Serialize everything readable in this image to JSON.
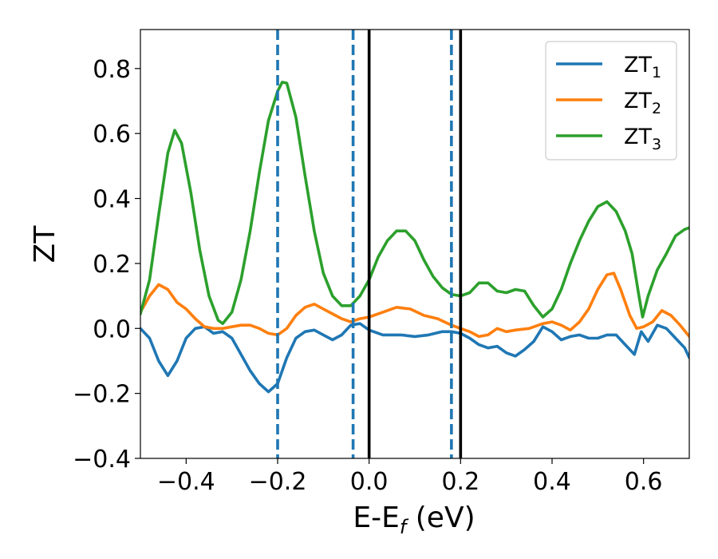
{
  "chart_data": {
    "type": "line",
    "xlabel": "E-E",
    "xlabel_sub": "f",
    "xlabel_unit": " (eV)",
    "ylabel": "ZT",
    "xlim": [
      -0.5,
      0.7
    ],
    "ylim": [
      -0.4,
      0.92
    ],
    "xticks": [
      -0.4,
      -0.2,
      0.0,
      0.2,
      0.4,
      0.6
    ],
    "xtick_labels": [
      "−0.4",
      "−0.2",
      "0.0",
      "0.2",
      "0.4",
      "0.6"
    ],
    "yticks": [
      -0.4,
      -0.2,
      0.0,
      0.2,
      0.4,
      0.6,
      0.8
    ],
    "ytick_labels": [
      "−0.4",
      "−0.2",
      "0.0",
      "0.2",
      "0.4",
      "0.6",
      "0.8"
    ],
    "grid": false,
    "legend_position": "top-right",
    "series": [
      {
        "name": "ZT",
        "name_sub": "1",
        "color": "#1f77b4",
        "points": [
          [
            -0.5,
            0.0
          ],
          [
            -0.48,
            -0.03
          ],
          [
            -0.46,
            -0.1
          ],
          [
            -0.44,
            -0.145
          ],
          [
            -0.42,
            -0.1
          ],
          [
            -0.4,
            -0.03
          ],
          [
            -0.38,
            0.0
          ],
          [
            -0.36,
            0.005
          ],
          [
            -0.34,
            -0.015
          ],
          [
            -0.32,
            -0.01
          ],
          [
            -0.3,
            -0.03
          ],
          [
            -0.28,
            -0.08
          ],
          [
            -0.26,
            -0.13
          ],
          [
            -0.24,
            -0.17
          ],
          [
            -0.22,
            -0.195
          ],
          [
            -0.2,
            -0.17
          ],
          [
            -0.18,
            -0.09
          ],
          [
            -0.16,
            -0.03
          ],
          [
            -0.14,
            -0.01
          ],
          [
            -0.12,
            -0.005
          ],
          [
            -0.1,
            -0.02
          ],
          [
            -0.08,
            -0.035
          ],
          [
            -0.06,
            -0.02
          ],
          [
            -0.04,
            0.01
          ],
          [
            -0.02,
            0.015
          ],
          [
            0.0,
            -0.005
          ],
          [
            0.03,
            -0.02
          ],
          [
            0.07,
            -0.02
          ],
          [
            0.1,
            -0.025
          ],
          [
            0.13,
            -0.02
          ],
          [
            0.16,
            -0.01
          ],
          [
            0.18,
            -0.01
          ],
          [
            0.2,
            -0.015
          ],
          [
            0.22,
            -0.03
          ],
          [
            0.24,
            -0.05
          ],
          [
            0.26,
            -0.06
          ],
          [
            0.28,
            -0.055
          ],
          [
            0.3,
            -0.075
          ],
          [
            0.32,
            -0.085
          ],
          [
            0.34,
            -0.065
          ],
          [
            0.36,
            -0.04
          ],
          [
            0.38,
            0.005
          ],
          [
            0.4,
            -0.01
          ],
          [
            0.42,
            -0.035
          ],
          [
            0.44,
            -0.025
          ],
          [
            0.46,
            -0.02
          ],
          [
            0.48,
            -0.03
          ],
          [
            0.5,
            -0.03
          ],
          [
            0.52,
            -0.02
          ],
          [
            0.54,
            -0.02
          ],
          [
            0.56,
            -0.05
          ],
          [
            0.58,
            -0.08
          ],
          [
            0.595,
            -0.01
          ],
          [
            0.61,
            -0.04
          ],
          [
            0.63,
            0.01
          ],
          [
            0.65,
            0.0
          ],
          [
            0.67,
            -0.03
          ],
          [
            0.69,
            -0.06
          ],
          [
            0.7,
            -0.09
          ]
        ]
      },
      {
        "name": "ZT",
        "name_sub": "2",
        "color": "#ff7f0e",
        "points": [
          [
            -0.5,
            0.05
          ],
          [
            -0.48,
            0.1
          ],
          [
            -0.46,
            0.135
          ],
          [
            -0.44,
            0.12
          ],
          [
            -0.42,
            0.08
          ],
          [
            -0.4,
            0.06
          ],
          [
            -0.38,
            0.03
          ],
          [
            -0.36,
            0.005
          ],
          [
            -0.34,
            0.0
          ],
          [
            -0.32,
            0.0
          ],
          [
            -0.3,
            0.005
          ],
          [
            -0.28,
            0.01
          ],
          [
            -0.26,
            0.01
          ],
          [
            -0.24,
            0.0
          ],
          [
            -0.22,
            -0.015
          ],
          [
            -0.2,
            -0.02
          ],
          [
            -0.18,
            0.0
          ],
          [
            -0.16,
            0.04
          ],
          [
            -0.14,
            0.065
          ],
          [
            -0.12,
            0.075
          ],
          [
            -0.1,
            0.06
          ],
          [
            -0.08,
            0.045
          ],
          [
            -0.06,
            0.03
          ],
          [
            -0.04,
            0.02
          ],
          [
            -0.02,
            0.03
          ],
          [
            0.0,
            0.035
          ],
          [
            0.03,
            0.05
          ],
          [
            0.06,
            0.065
          ],
          [
            0.09,
            0.06
          ],
          [
            0.12,
            0.04
          ],
          [
            0.15,
            0.03
          ],
          [
            0.18,
            0.01
          ],
          [
            0.2,
            0.0
          ],
          [
            0.22,
            -0.01
          ],
          [
            0.24,
            -0.025
          ],
          [
            0.26,
            -0.02
          ],
          [
            0.28,
            0.0
          ],
          [
            0.3,
            -0.01
          ],
          [
            0.32,
            -0.005
          ],
          [
            0.35,
            0.0
          ],
          [
            0.38,
            0.015
          ],
          [
            0.4,
            0.02
          ],
          [
            0.42,
            0.01
          ],
          [
            0.44,
            -0.005
          ],
          [
            0.46,
            0.02
          ],
          [
            0.48,
            0.06
          ],
          [
            0.5,
            0.12
          ],
          [
            0.52,
            0.165
          ],
          [
            0.535,
            0.17
          ],
          [
            0.55,
            0.12
          ],
          [
            0.57,
            0.04
          ],
          [
            0.585,
            0.0
          ],
          [
            0.6,
            0.005
          ],
          [
            0.62,
            0.02
          ],
          [
            0.64,
            0.055
          ],
          [
            0.66,
            0.04
          ],
          [
            0.68,
            0.01
          ],
          [
            0.7,
            -0.025
          ]
        ]
      },
      {
        "name": "ZT",
        "name_sub": "3",
        "color": "#2ca02c",
        "points": [
          [
            -0.5,
            0.045
          ],
          [
            -0.48,
            0.15
          ],
          [
            -0.46,
            0.35
          ],
          [
            -0.44,
            0.54
          ],
          [
            -0.425,
            0.61
          ],
          [
            -0.41,
            0.57
          ],
          [
            -0.39,
            0.42
          ],
          [
            -0.37,
            0.24
          ],
          [
            -0.35,
            0.1
          ],
          [
            -0.33,
            0.025
          ],
          [
            -0.32,
            0.015
          ],
          [
            -0.3,
            0.05
          ],
          [
            -0.28,
            0.15
          ],
          [
            -0.26,
            0.3
          ],
          [
            -0.24,
            0.48
          ],
          [
            -0.22,
            0.64
          ],
          [
            -0.2,
            0.73
          ],
          [
            -0.19,
            0.758
          ],
          [
            -0.18,
            0.755
          ],
          [
            -0.16,
            0.65
          ],
          [
            -0.14,
            0.47
          ],
          [
            -0.12,
            0.3
          ],
          [
            -0.1,
            0.17
          ],
          [
            -0.08,
            0.1
          ],
          [
            -0.06,
            0.07
          ],
          [
            -0.04,
            0.07
          ],
          [
            -0.02,
            0.1
          ],
          [
            0.0,
            0.15
          ],
          [
            0.02,
            0.22
          ],
          [
            0.04,
            0.27
          ],
          [
            0.06,
            0.3
          ],
          [
            0.08,
            0.3
          ],
          [
            0.1,
            0.27
          ],
          [
            0.12,
            0.21
          ],
          [
            0.14,
            0.16
          ],
          [
            0.16,
            0.125
          ],
          [
            0.18,
            0.105
          ],
          [
            0.2,
            0.1
          ],
          [
            0.22,
            0.11
          ],
          [
            0.24,
            0.14
          ],
          [
            0.26,
            0.14
          ],
          [
            0.28,
            0.115
          ],
          [
            0.3,
            0.11
          ],
          [
            0.32,
            0.12
          ],
          [
            0.34,
            0.115
          ],
          [
            0.36,
            0.07
          ],
          [
            0.38,
            0.035
          ],
          [
            0.4,
            0.06
          ],
          [
            0.42,
            0.12
          ],
          [
            0.44,
            0.2
          ],
          [
            0.46,
            0.27
          ],
          [
            0.48,
            0.33
          ],
          [
            0.5,
            0.375
          ],
          [
            0.52,
            0.39
          ],
          [
            0.54,
            0.36
          ],
          [
            0.56,
            0.3
          ],
          [
            0.575,
            0.23
          ],
          [
            0.59,
            0.1
          ],
          [
            0.598,
            0.035
          ],
          [
            0.61,
            0.1
          ],
          [
            0.63,
            0.18
          ],
          [
            0.65,
            0.23
          ],
          [
            0.67,
            0.285
          ],
          [
            0.69,
            0.305
          ],
          [
            0.7,
            0.31
          ]
        ]
      }
    ],
    "vlines": [
      {
        "x": -0.2,
        "style": "dashed",
        "color": "#1f77b4"
      },
      {
        "x": -0.035,
        "style": "dashed",
        "color": "#1f77b4"
      },
      {
        "x": 0.0,
        "style": "solid",
        "color": "#000000"
      },
      {
        "x": 0.18,
        "style": "dashed",
        "color": "#1f77b4"
      },
      {
        "x": 0.2,
        "style": "solid",
        "color": "#000000"
      }
    ]
  }
}
